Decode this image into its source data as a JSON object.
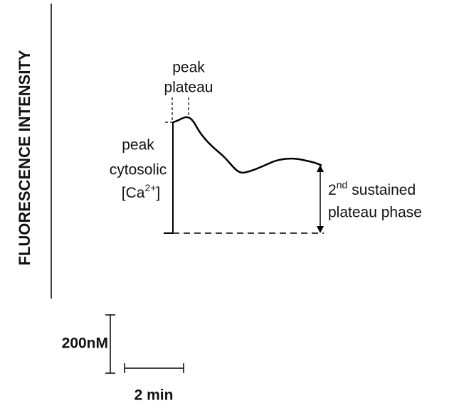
{
  "y_axis_label": "FLUORESCENCE INTENSITY",
  "annotations": {
    "peak_plateau": [
      "peak",
      "plateau"
    ],
    "peak_cytosolic": {
      "lines": [
        "peak",
        "cytosolic"
      ],
      "ca_prefix": "[Ca",
      "ca_superscript": "2+",
      "ca_suffix": "]"
    },
    "sustained": {
      "ordinal": "2",
      "ordinal_suffix": "nd",
      "rest": "sustained",
      "line2": "plateau phase"
    }
  },
  "scale_bar": {
    "vertical": "200nM",
    "horizontal": "2 min"
  }
}
